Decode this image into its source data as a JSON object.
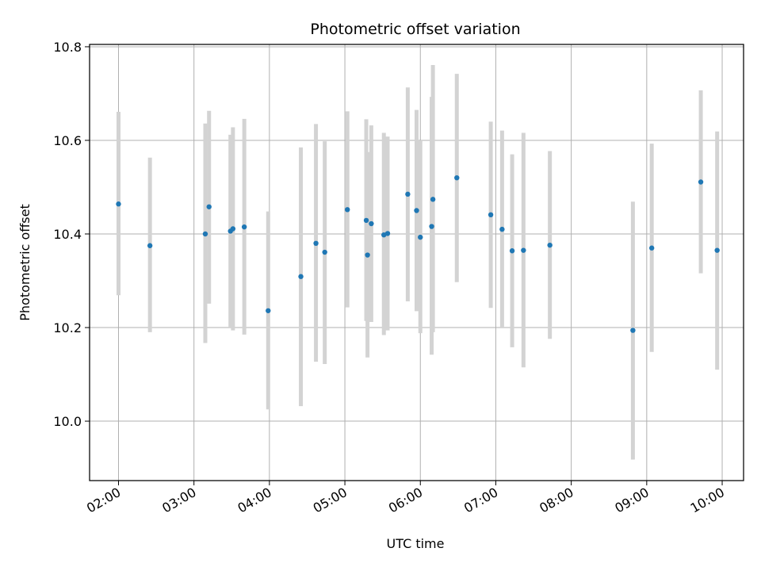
{
  "chart_data": {
    "type": "scatter",
    "title": "Photometric offset variation",
    "xlabel": "UTC time",
    "ylabel": "Photometric offset",
    "x_unit": "UTC time of day (HH:MM)",
    "xlim": [
      "01:37",
      "10:17"
    ],
    "ylim": [
      9.873,
      10.805
    ],
    "x_ticks": [
      "02:00",
      "03:00",
      "04:00",
      "05:00",
      "06:00",
      "07:00",
      "08:00",
      "09:00",
      "10:00"
    ],
    "y_ticks": [
      10.0,
      10.2,
      10.4,
      10.6,
      10.8
    ],
    "y_tick_labels": [
      "10.0",
      "10.2",
      "10.4",
      "10.6",
      "10.8"
    ],
    "grid": true,
    "legend": "none",
    "colors": {
      "points": "#1f77b4",
      "error_bars": "#d3d3d3",
      "grid": "#b0b0b0"
    },
    "series": [
      {
        "points": [
          {
            "time": "02:00",
            "y": 10.464,
            "low": 10.269,
            "high": 10.661
          },
          {
            "time": "02:25",
            "y": 10.375,
            "low": 10.19,
            "high": 10.563
          },
          {
            "time": "03:09",
            "y": 10.4,
            "low": 10.167,
            "high": 10.636
          },
          {
            "time": "03:12",
            "y": 10.458,
            "low": 10.251,
            "high": 10.663
          },
          {
            "time": "03:29",
            "y": 10.406,
            "low": 10.2,
            "high": 10.612
          },
          {
            "time": "03:31",
            "y": 10.411,
            "low": 10.194,
            "high": 10.628
          },
          {
            "time": "03:40",
            "y": 10.415,
            "low": 10.185,
            "high": 10.646
          },
          {
            "time": "03:59",
            "y": 10.236,
            "low": 10.025,
            "high": 10.448
          },
          {
            "time": "04:25",
            "y": 10.309,
            "low": 10.032,
            "high": 10.585
          },
          {
            "time": "04:37",
            "y": 10.38,
            "low": 10.127,
            "high": 10.635
          },
          {
            "time": "04:44",
            "y": 10.361,
            "low": 10.122,
            "high": 10.598
          },
          {
            "time": "05:02",
            "y": 10.452,
            "low": 10.243,
            "high": 10.662
          },
          {
            "time": "05:17",
            "y": 10.429,
            "low": 10.214,
            "high": 10.645
          },
          {
            "time": "05:18",
            "y": 10.355,
            "low": 10.136,
            "high": 10.575
          },
          {
            "time": "05:21",
            "y": 10.422,
            "low": 10.212,
            "high": 10.632
          },
          {
            "time": "05:31",
            "y": 10.398,
            "low": 10.184,
            "high": 10.616
          },
          {
            "time": "05:34",
            "y": 10.401,
            "low": 10.194,
            "high": 10.608
          },
          {
            "time": "05:50",
            "y": 10.485,
            "low": 10.256,
            "high": 10.713
          },
          {
            "time": "05:57",
            "y": 10.45,
            "low": 10.235,
            "high": 10.665
          },
          {
            "time": "06:00",
            "y": 10.393,
            "low": 10.188,
            "high": 10.6
          },
          {
            "time": "06:09",
            "y": 10.416,
            "low": 10.142,
            "high": 10.693
          },
          {
            "time": "06:10",
            "y": 10.474,
            "low": 10.19,
            "high": 10.761
          },
          {
            "time": "06:29",
            "y": 10.52,
            "low": 10.297,
            "high": 10.742
          },
          {
            "time": "06:56",
            "y": 10.441,
            "low": 10.242,
            "high": 10.64
          },
          {
            "time": "07:05",
            "y": 10.41,
            "low": 10.2,
            "high": 10.621
          },
          {
            "time": "07:13",
            "y": 10.364,
            "low": 10.158,
            "high": 10.57
          },
          {
            "time": "07:22",
            "y": 10.365,
            "low": 10.115,
            "high": 10.616
          },
          {
            "time": "07:43",
            "y": 10.376,
            "low": 10.176,
            "high": 10.577
          },
          {
            "time": "08:49",
            "y": 10.194,
            "low": 9.918,
            "high": 10.469
          },
          {
            "time": "09:04",
            "y": 10.37,
            "low": 10.148,
            "high": 10.593
          },
          {
            "time": "09:43",
            "y": 10.511,
            "low": 10.316,
            "high": 10.707
          },
          {
            "time": "09:56",
            "y": 10.365,
            "low": 10.11,
            "high": 10.619
          }
        ]
      }
    ]
  }
}
